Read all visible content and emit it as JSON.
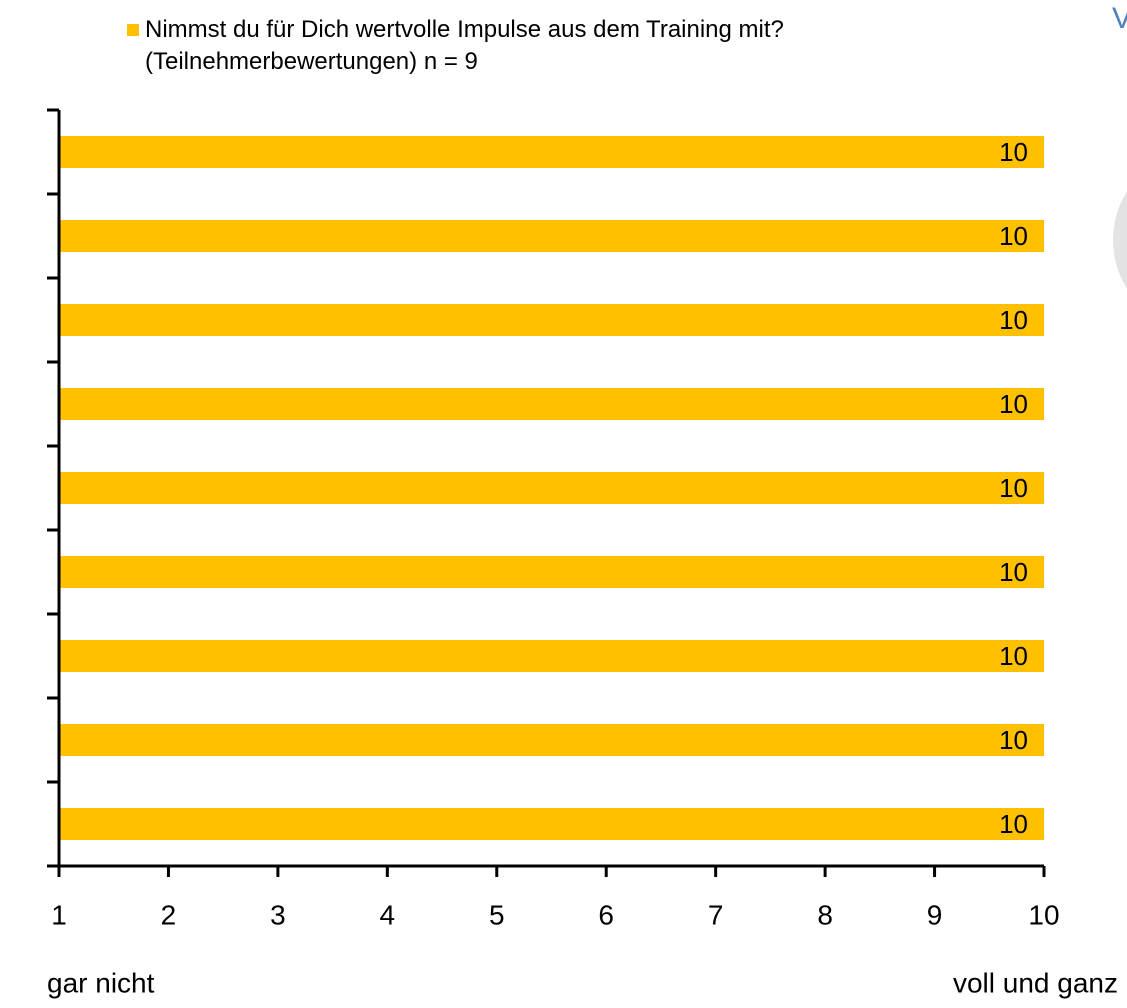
{
  "chart_data": {
    "type": "bar",
    "orientation": "horizontal",
    "categories": [
      null,
      null,
      null,
      null,
      null,
      null,
      null,
      null,
      null
    ],
    "series": [
      {
        "name": "Nimmst du für Dich wertvolle Impulse aus dem Training mit? (Teilnehmerbewertungen) n = 9",
        "color": "#ffc000",
        "values": [
          10,
          10,
          10,
          10,
          10,
          10,
          10,
          10,
          10
        ]
      }
    ],
    "xlim": [
      1,
      10
    ],
    "xticks": [
      1,
      2,
      3,
      4,
      5,
      6,
      7,
      8,
      9,
      10
    ],
    "x_axis_start_label": "gar nicht",
    "x_axis_end_label": "voll und ganz",
    "annotations": [
      "V"
    ],
    "legend": "top"
  }
}
